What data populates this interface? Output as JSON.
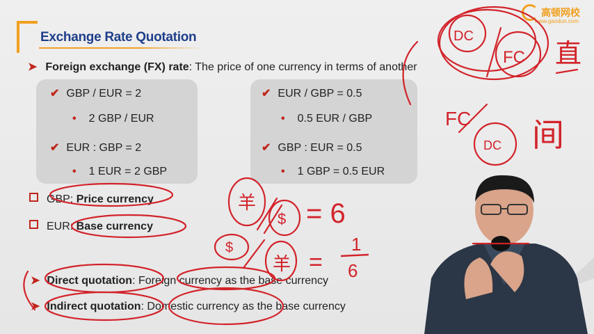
{
  "logo": {
    "name": "高顿网校",
    "url": "www.gaodun.com"
  },
  "title": "Exchange Rate Quotation",
  "intro": {
    "term": "Foreign exchange (FX) rate",
    "definition": ": The price of one currency in terms of another"
  },
  "left_box": {
    "line1": "GBP / EUR = 2",
    "line2": "2 GBP / EUR",
    "line3": "EUR : GBP = 2",
    "line4": "1 EUR = 2 GBP"
  },
  "right_box": {
    "line1": "EUR / GBP = 0.5",
    "line2": "0.5 EUR / GBP",
    "line3": "GBP : EUR = 0.5",
    "line4": "1 GBP = 0.5 EUR"
  },
  "currencies": {
    "gbp_prefix": "GBP: ",
    "gbp_role": "Price currency",
    "eur_prefix": "EUR: ",
    "eur_role": "Base currency"
  },
  "quotations": {
    "direct_term": "Direct quotation",
    "direct_def": ": Foreign currency as the base currency",
    "indirect_term": "Indirect quotation",
    "indirect_def": ": Domestic currency as the base currency"
  },
  "annotations": {
    "dc": "DC",
    "fc": "FC",
    "zhi": "直",
    "fc2": "FC",
    "dc2": "DC",
    "jian": "间",
    "yuan": "羊",
    "dollar": "$",
    "eq1": "= 6",
    "eq2_num": "1",
    "eq2_den": "6"
  },
  "colors": {
    "accent": "#f0a020",
    "title": "#1f3f8a",
    "bullet": "#c0261c",
    "ink": "#d2232a"
  }
}
